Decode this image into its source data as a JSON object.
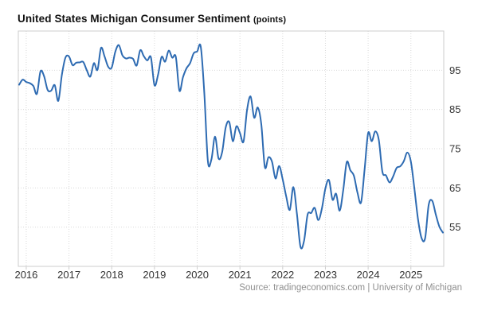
{
  "title": {
    "main": "United States Michigan Consumer Sentiment",
    "unit": "(points)"
  },
  "source": {
    "prefix": "Source: ",
    "link": "tradingeconomics.com",
    "separator": " | ",
    "attribution": "University of Michigan"
  },
  "colors": {
    "line": "#2e6bb2",
    "grid": "#d9d9d9",
    "border": "#cccccc",
    "axis_text": "#333333",
    "title_text": "#111111",
    "source_text": "#8f8f8f",
    "background": "#ffffff"
  },
  "chart_data": {
    "type": "line",
    "title": "United States Michigan Consumer Sentiment (points)",
    "xlabel": "",
    "ylabel": "points",
    "frequency": "monthly",
    "start": "2015-11",
    "end": "2025-10",
    "series": [
      {
        "name": "Michigan Consumer Sentiment",
        "values": [
          91.3,
          92.6,
          92.0,
          91.7,
          91.0,
          89.0,
          94.7,
          93.5,
          90.0,
          89.8,
          91.2,
          87.2,
          93.8,
          98.2,
          98.5,
          96.3,
          96.9,
          97.0,
          97.1,
          95.0,
          93.4,
          96.8,
          95.1,
          100.7,
          98.5,
          95.9,
          95.7,
          99.7,
          101.4,
          98.8,
          98.0,
          98.2,
          97.9,
          96.2,
          100.1,
          98.6,
          97.5,
          98.3,
          91.2,
          93.8,
          98.4,
          97.2,
          100.0,
          98.2,
          98.4,
          89.8,
          93.2,
          95.5,
          96.8,
          99.3,
          99.8,
          101.0,
          89.1,
          71.8,
          72.3,
          78.1,
          72.5,
          74.1,
          80.4,
          81.8,
          76.9,
          80.7,
          79.0,
          76.8,
          84.9,
          88.3,
          82.9,
          85.5,
          81.2,
          70.3,
          72.8,
          71.7,
          67.4,
          70.6,
          67.2,
          62.8,
          59.4,
          65.2,
          58.4,
          50.0,
          51.5,
          58.2,
          58.6,
          59.9,
          56.8,
          59.7,
          64.9,
          67.0,
          62.0,
          63.5,
          59.2,
          64.4,
          71.6,
          69.5,
          68.1,
          63.8,
          61.3,
          69.7,
          79.0,
          76.9,
          79.4,
          77.2,
          69.1,
          68.2,
          66.4,
          67.9,
          70.1,
          70.5,
          71.8,
          74.0,
          71.7,
          64.7,
          57.0,
          52.2,
          52.2,
          60.7,
          61.7,
          58.2,
          55.1,
          53.6
        ]
      }
    ],
    "x_tick_labels": [
      "2016",
      "2017",
      "2018",
      "2019",
      "2020",
      "2021",
      "2022",
      "2023",
      "2024",
      "2025"
    ],
    "y_tick_labels": [
      "95",
      "85",
      "75",
      "65",
      "55"
    ],
    "y_ticks": [
      95,
      85,
      75,
      65,
      55
    ],
    "ylim": [
      45,
      105
    ],
    "grid": "dotted",
    "legend": "none",
    "y_axis_position": "right"
  }
}
